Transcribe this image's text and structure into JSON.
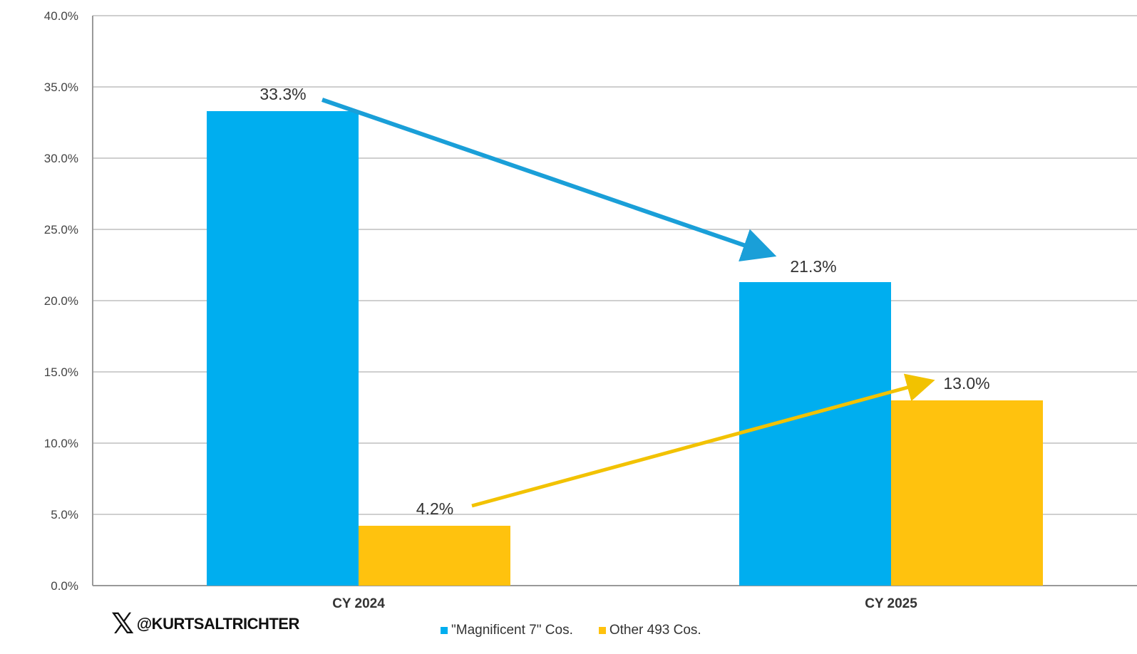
{
  "chart_data": {
    "type": "bar",
    "title": "",
    "categories": [
      "CY 2024",
      "CY 2025"
    ],
    "series": [
      {
        "name": "\"Magnificent 7\" Cos.",
        "values": [
          33.3,
          21.3
        ],
        "labels": [
          "33.3%",
          "21.3%"
        ],
        "color": "#00aeef"
      },
      {
        "name": "Other 493 Cos.",
        "values": [
          4.2,
          13.0
        ],
        "labels": [
          "4.2%",
          "13.0%"
        ],
        "color": "#ffc20e"
      }
    ],
    "ylim": [
      0,
      40
    ],
    "yticks": [
      "0.0%",
      "5.0%",
      "10.0%",
      "15.0%",
      "20.0%",
      "25.0%",
      "30.0%",
      "35.0%",
      "40.0%"
    ],
    "ytick_values": [
      0,
      5,
      10,
      15,
      20,
      25,
      30,
      35,
      40
    ],
    "grid": true,
    "legend_position": "bottom",
    "annotations": [
      {
        "type": "arrow",
        "from_series": 0,
        "color": "#1a9fd8"
      },
      {
        "type": "arrow",
        "from_series": 1,
        "color": "#f2c200"
      }
    ]
  },
  "credit": {
    "handle": "@KURTSALTRICHTER",
    "icon": "x-logo-icon"
  }
}
